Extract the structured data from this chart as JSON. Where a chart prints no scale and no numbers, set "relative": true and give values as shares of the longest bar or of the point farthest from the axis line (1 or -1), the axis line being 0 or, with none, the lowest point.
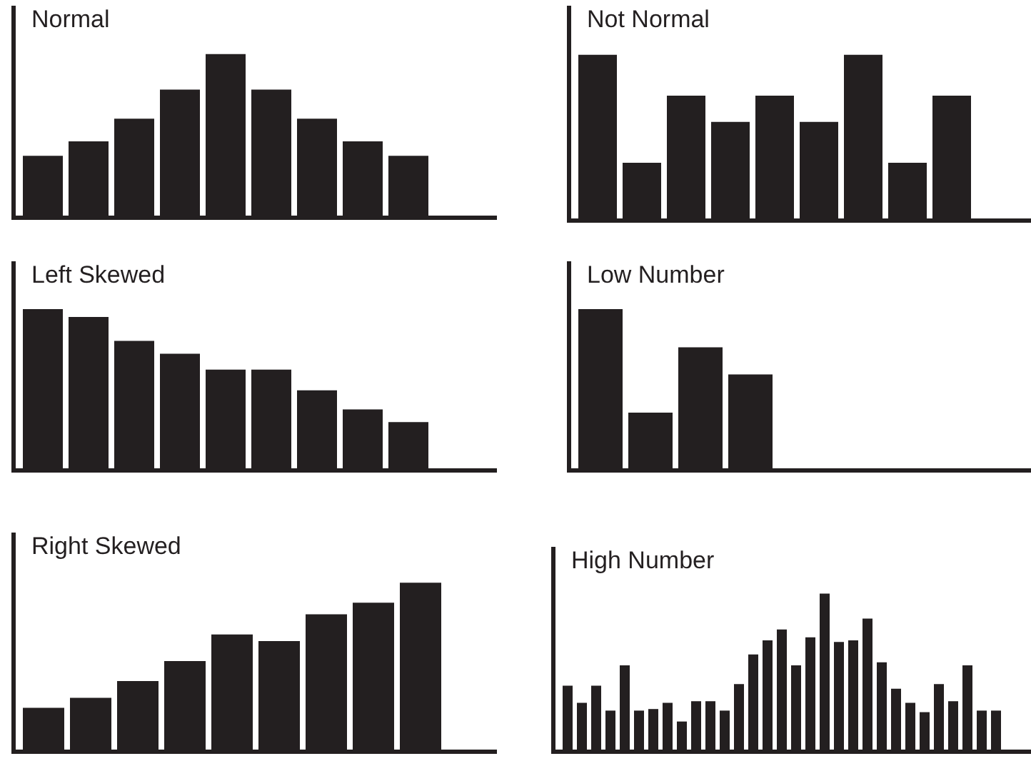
{
  "chart_data": [
    {
      "type": "bar",
      "title": "Normal",
      "relative": true,
      "color": "#231f20",
      "categories": [
        null,
        null,
        null,
        null,
        null,
        null,
        null,
        null,
        null
      ],
      "values": [
        0.37,
        0.46,
        0.6,
        0.78,
        1,
        0.78,
        0.6,
        0.46,
        0.37
      ]
    },
    {
      "type": "bar",
      "title": "Not Normal",
      "relative": true,
      "color": "#231f20",
      "categories": [
        null,
        null,
        null,
        null,
        null,
        null,
        null,
        null,
        null
      ],
      "values": [
        1,
        0.34,
        0.75,
        0.59,
        0.75,
        0.59,
        1,
        0.34,
        0.75
      ]
    },
    {
      "type": "bar",
      "title": "Left Skewed",
      "relative": true,
      "color": "#231f20",
      "categories": [
        null,
        null,
        null,
        null,
        null,
        null,
        null,
        null,
        null
      ],
      "values": [
        1,
        0.95,
        0.8,
        0.72,
        0.62,
        0.62,
        0.49,
        0.37,
        0.29
      ]
    },
    {
      "type": "bar",
      "title": "Low Number",
      "relative": true,
      "color": "#231f20",
      "categories": [
        null,
        null,
        null,
        null
      ],
      "values": [
        1,
        0.35,
        0.76,
        0.59
      ]
    },
    {
      "type": "bar",
      "title": "Right Skewed",
      "relative": true,
      "color": "#231f20",
      "categories": [
        null,
        null,
        null,
        null,
        null,
        null,
        null,
        null,
        null
      ],
      "values": [
        0.25,
        0.31,
        0.41,
        0.53,
        0.69,
        0.65,
        0.81,
        0.88,
        1
      ]
    },
    {
      "type": "bar",
      "title": "High Number",
      "relative": true,
      "color": "#231f20",
      "categories": [
        null,
        null,
        null,
        null,
        null,
        null,
        null,
        null,
        null,
        null,
        null,
        null,
        null,
        null,
        null,
        null,
        null,
        null,
        null,
        null,
        null,
        null,
        null,
        null,
        null,
        null,
        null,
        null,
        null,
        null,
        null
      ],
      "values": [
        0.41,
        0.3,
        0.41,
        0.25,
        0.54,
        0.25,
        0.26,
        0.3,
        0.18,
        0.31,
        0.31,
        0.25,
        0.42,
        0.61,
        0.7,
        0.77,
        0.54,
        0.72,
        1,
        0.69,
        0.7,
        0.84,
        0.56,
        0.39,
        0.3,
        0.24,
        0.42,
        0.31,
        0.54,
        0.25,
        0.25
      ]
    }
  ]
}
